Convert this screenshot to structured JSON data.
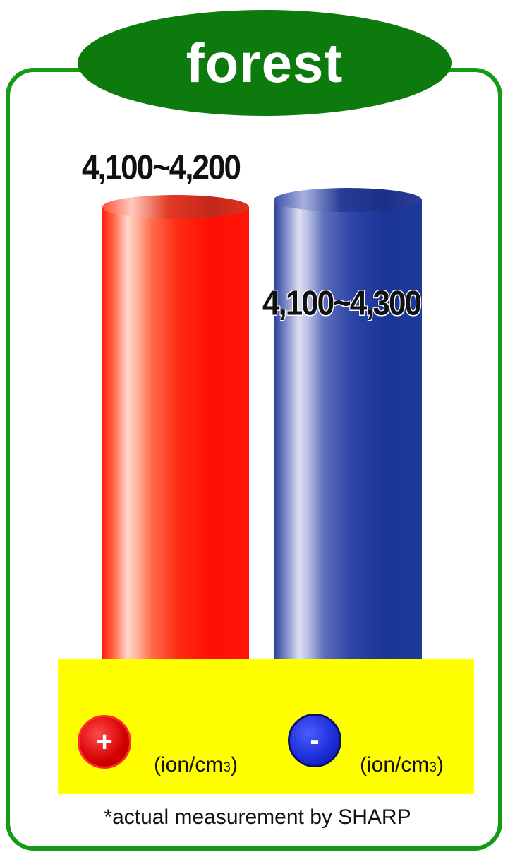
{
  "title": "forest",
  "chart_data": {
    "type": "bar",
    "categories": [
      "+",
      "-"
    ],
    "series": [
      {
        "name": "+",
        "range": [
          4100,
          4200
        ],
        "label": "4,100~4,200",
        "color": "#ff1a0a"
      },
      {
        "name": "-",
        "range": [
          4100,
          4300
        ],
        "label": "4,100~4,300",
        "color": "#1d3a9c"
      }
    ],
    "units": "(ion/cm3)"
  },
  "legend": {
    "plus_symbol": "+",
    "minus_symbol": "-",
    "plus_unit_main": "(ion/cm",
    "plus_unit_sub": "3",
    "plus_unit_close": ")",
    "minus_unit_main": "(ion/cm",
    "minus_unit_sub": "3",
    "minus_unit_close": ")"
  },
  "footnote": "*actual measurement by SHARP"
}
